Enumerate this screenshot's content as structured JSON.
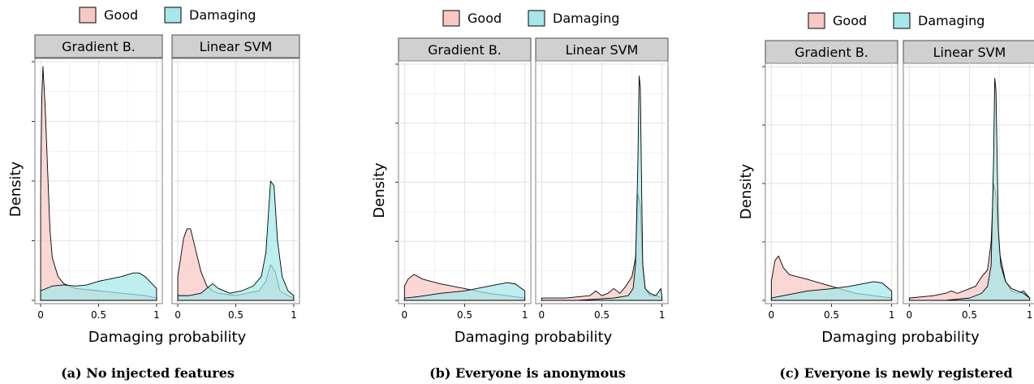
{
  "figure": {
    "legend": {
      "good_label": "Good",
      "damaging_label": "Damaging"
    },
    "colors": {
      "good": "#f8c8c4",
      "damaging": "#a4e8ea",
      "strip": "#d0d0d0",
      "grid": "#e6e6e6"
    },
    "x_tick_labels": [
      "0",
      "0.5",
      "1"
    ],
    "facet_labels": [
      "Gradient B.",
      "Linear SVM"
    ]
  },
  "chart_data": [
    {
      "type": "area",
      "caption": "(a) No injected features",
      "xlabel": "Damaging probability",
      "ylabel": "Density",
      "xlim": [
        0,
        1
      ],
      "legend_position": "top",
      "facets": [
        {
          "name": "Gradient B.",
          "ymax": 1.0,
          "series": [
            {
              "name": "Good",
              "x": [
                0,
                0.01,
                0.02,
                0.04,
                0.06,
                0.08,
                0.1,
                0.15,
                0.2,
                0.3,
                0.5,
                0.7,
                0.9,
                1.0
              ],
              "y": [
                0.45,
                0.85,
                0.98,
                0.8,
                0.55,
                0.3,
                0.18,
                0.1,
                0.07,
                0.05,
                0.04,
                0.03,
                0.02,
                0.01
              ]
            },
            {
              "name": "Damaging",
              "x": [
                0,
                0.1,
                0.2,
                0.3,
                0.4,
                0.5,
                0.6,
                0.7,
                0.8,
                0.85,
                0.9,
                1.0
              ],
              "y": [
                0.04,
                0.06,
                0.065,
                0.06,
                0.065,
                0.08,
                0.09,
                0.1,
                0.115,
                0.115,
                0.1,
                0.05
              ]
            }
          ]
        },
        {
          "name": "Linear SVM",
          "ymax": 1.0,
          "series": [
            {
              "name": "Good",
              "x": [
                0,
                0.05,
                0.08,
                0.11,
                0.15,
                0.2,
                0.25,
                0.3,
                0.35,
                0.5,
                0.7,
                0.76,
                0.8,
                0.84,
                0.88,
                0.95,
                1.0
              ],
              "y": [
                0.1,
                0.26,
                0.3,
                0.3,
                0.22,
                0.12,
                0.06,
                0.04,
                0.03,
                0.02,
                0.04,
                0.08,
                0.15,
                0.12,
                0.04,
                0.02,
                0.01
              ]
            },
            {
              "name": "Damaging",
              "x": [
                0,
                0.1,
                0.2,
                0.3,
                0.35,
                0.45,
                0.55,
                0.65,
                0.72,
                0.76,
                0.8,
                0.83,
                0.86,
                0.9,
                0.95,
                1.0
              ],
              "y": [
                0.02,
                0.02,
                0.03,
                0.07,
                0.05,
                0.03,
                0.04,
                0.06,
                0.1,
                0.2,
                0.5,
                0.48,
                0.25,
                0.1,
                0.04,
                0.02
              ]
            }
          ]
        }
      ]
    },
    {
      "type": "area",
      "caption": "(b) Everyone is anonymous",
      "xlabel": "Damaging probability",
      "ylabel": "Density",
      "xlim": [
        0,
        1
      ],
      "legend_position": "top",
      "facets": [
        {
          "name": "Gradient B.",
          "ymax": 1.0,
          "series": [
            {
              "name": "Good",
              "x": [
                0,
                0.03,
                0.08,
                0.15,
                0.3,
                0.5,
                0.7,
                0.85,
                1.0
              ],
              "y": [
                0.06,
                0.09,
                0.11,
                0.09,
                0.07,
                0.05,
                0.03,
                0.02,
                0.01
              ]
            },
            {
              "name": "Damaging",
              "x": [
                0,
                0.1,
                0.3,
                0.5,
                0.65,
                0.75,
                0.85,
                0.92,
                1.0
              ],
              "y": [
                0.01,
                0.015,
                0.03,
                0.04,
                0.055,
                0.065,
                0.075,
                0.07,
                0.04
              ]
            }
          ]
        },
        {
          "name": "Linear SVM",
          "ymax": 1.0,
          "series": [
            {
              "name": "Good",
              "x": [
                0,
                0.2,
                0.4,
                0.45,
                0.5,
                0.55,
                0.6,
                0.65,
                0.7,
                0.75,
                0.78,
                0.8,
                0.82,
                0.84,
                0.86,
                0.9,
                0.95,
                1.0
              ],
              "y": [
                0.01,
                0.01,
                0.02,
                0.04,
                0.02,
                0.03,
                0.05,
                0.03,
                0.06,
                0.1,
                0.18,
                0.45,
                0.4,
                0.15,
                0.05,
                0.02,
                0.02,
                0.01
              ]
            },
            {
              "name": "Damaging",
              "x": [
                0,
                0.3,
                0.6,
                0.72,
                0.76,
                0.78,
                0.8,
                0.81,
                0.82,
                0.83,
                0.84,
                0.86,
                0.9,
                0.95,
                0.99,
                1.0
              ],
              "y": [
                0.0,
                0.0,
                0.01,
                0.02,
                0.05,
                0.15,
                0.6,
                0.95,
                0.9,
                0.5,
                0.15,
                0.05,
                0.03,
                0.02,
                0.05,
                0.01
              ]
            }
          ]
        }
      ]
    },
    {
      "type": "area",
      "caption": "(c) Everyone is newly registered",
      "xlabel": "Damaging probability",
      "ylabel": "Density",
      "xlim": [
        0,
        1
      ],
      "legend_position": "top",
      "facets": [
        {
          "name": "Gradient B.",
          "ymax": 1.0,
          "series": [
            {
              "name": "Good",
              "x": [
                0,
                0.03,
                0.06,
                0.1,
                0.15,
                0.3,
                0.5,
                0.7,
                0.85,
                1.0
              ],
              "y": [
                0.08,
                0.17,
                0.19,
                0.14,
                0.11,
                0.09,
                0.06,
                0.03,
                0.02,
                0.01
              ]
            },
            {
              "name": "Damaging",
              "x": [
                0,
                0.1,
                0.3,
                0.5,
                0.65,
                0.75,
                0.85,
                0.92,
                1.0
              ],
              "y": [
                0.01,
                0.02,
                0.04,
                0.05,
                0.06,
                0.07,
                0.08,
                0.075,
                0.04
              ]
            }
          ]
        },
        {
          "name": "Linear SVM",
          "ymax": 1.0,
          "series": [
            {
              "name": "Good",
              "x": [
                0,
                0.2,
                0.3,
                0.35,
                0.4,
                0.5,
                0.55,
                0.6,
                0.65,
                0.68,
                0.7,
                0.72,
                0.75,
                0.8,
                0.85,
                0.9,
                0.95,
                1.0
              ],
              "y": [
                0.01,
                0.02,
                0.03,
                0.04,
                0.03,
                0.05,
                0.06,
                0.1,
                0.13,
                0.25,
                0.5,
                0.45,
                0.2,
                0.08,
                0.04,
                0.03,
                0.04,
                0.01
              ]
            },
            {
              "name": "Damaging",
              "x": [
                0,
                0.3,
                0.5,
                0.6,
                0.65,
                0.68,
                0.7,
                0.71,
                0.72,
                0.73,
                0.74,
                0.76,
                0.8,
                0.85,
                0.9,
                0.95,
                1.0
              ],
              "y": [
                0.0,
                0.0,
                0.01,
                0.03,
                0.06,
                0.15,
                0.6,
                0.95,
                0.9,
                0.6,
                0.3,
                0.15,
                0.08,
                0.05,
                0.04,
                0.03,
                0.01
              ]
            }
          ]
        }
      ]
    }
  ]
}
